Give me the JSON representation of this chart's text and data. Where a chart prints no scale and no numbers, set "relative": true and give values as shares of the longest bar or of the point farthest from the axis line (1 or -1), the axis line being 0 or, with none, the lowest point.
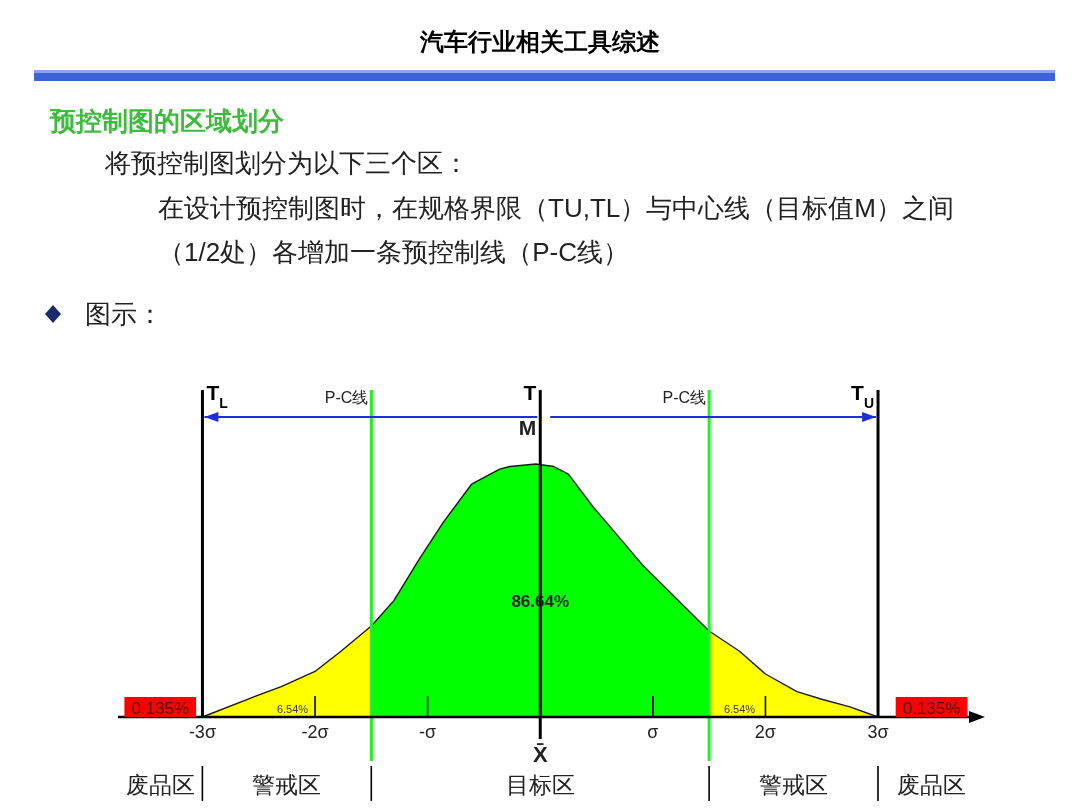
{
  "chart_data": {
    "type": "area",
    "title": "汽车行业相关工具综述",
    "subtitle": "预控制图的区域划分",
    "relative": true,
    "xlim": [
      -3.75,
      3.95
    ],
    "xticks": [
      {
        "value": -3,
        "label": "-3σ"
      },
      {
        "value": -2,
        "label": "-2σ"
      },
      {
        "value": -1,
        "label": "-σ"
      },
      {
        "value": 1,
        "label": "σ"
      },
      {
        "value": 2,
        "label": "2σ"
      },
      {
        "value": 3,
        "label": "3σ"
      }
    ],
    "series": [
      {
        "color": "#ffff00",
        "x": [
          -3,
          -2.6,
          -2.3,
          -2.0,
          -1.77,
          -1.5
        ],
        "values": [
          0,
          0.07,
          0.12,
          0.18,
          0.26,
          0.36
        ]
      },
      {
        "color": "#00ff00",
        "x": [
          -1.5,
          -1.3,
          -1.08,
          -0.86,
          -0.61,
          -0.36,
          -0.27,
          -0.04,
          0.12,
          0.25,
          0.47,
          0.72,
          0.91,
          1.5
        ],
        "values": [
          0.36,
          0.46,
          0.62,
          0.77,
          0.92,
          0.98,
          0.99,
          1,
          0.99,
          0.96,
          0.83,
          0.7,
          0.6,
          0.34
        ]
      },
      {
        "color": "#ffff00",
        "x": [
          1.5,
          1.77,
          2.0,
          2.28,
          2.5,
          2.75,
          3.0
        ],
        "values": [
          0.34,
          0.26,
          0.17,
          0.1,
          0.07,
          0.04,
          0
        ]
      }
    ],
    "ref_lines": [
      {
        "axis": "x",
        "value": -3,
        "label": "T$_{L}$",
        "color": "#000000"
      },
      {
        "axis": "x",
        "value": 0,
        "label": "T",
        "color": "#000000"
      },
      {
        "axis": "x",
        "value": 3,
        "label": "T$_{U}$",
        "color": "#000000"
      },
      {
        "axis": "x",
        "value": -1.5,
        "label": "P-C线",
        "color": "#22ee22"
      },
      {
        "axis": "x",
        "value": 1.5,
        "label": "P-C线",
        "color": "#22ee22"
      }
    ],
    "annotations": [
      "将预控制图划分为以下三个区：",
      "在设计预控制图时，在规格界限（TU,TL）与中心线（目标值M）之间",
      "（1/2处）各增加一条预控制线（P-C线）",
      "图示：",
      "M",
      "X̄",
      "废品区",
      "警戒区",
      "目标区",
      "警戒区",
      "废品区",
      "0.135%",
      "0.135%",
      {
        "text": "86.64%",
        "x": 0,
        "y": 0.42
      },
      {
        "text": "6.54%",
        "x": -2.2,
        "y": 0
      },
      {
        "text": "6.54%",
        "x": 1.77,
        "y": 0
      }
    ]
  }
}
